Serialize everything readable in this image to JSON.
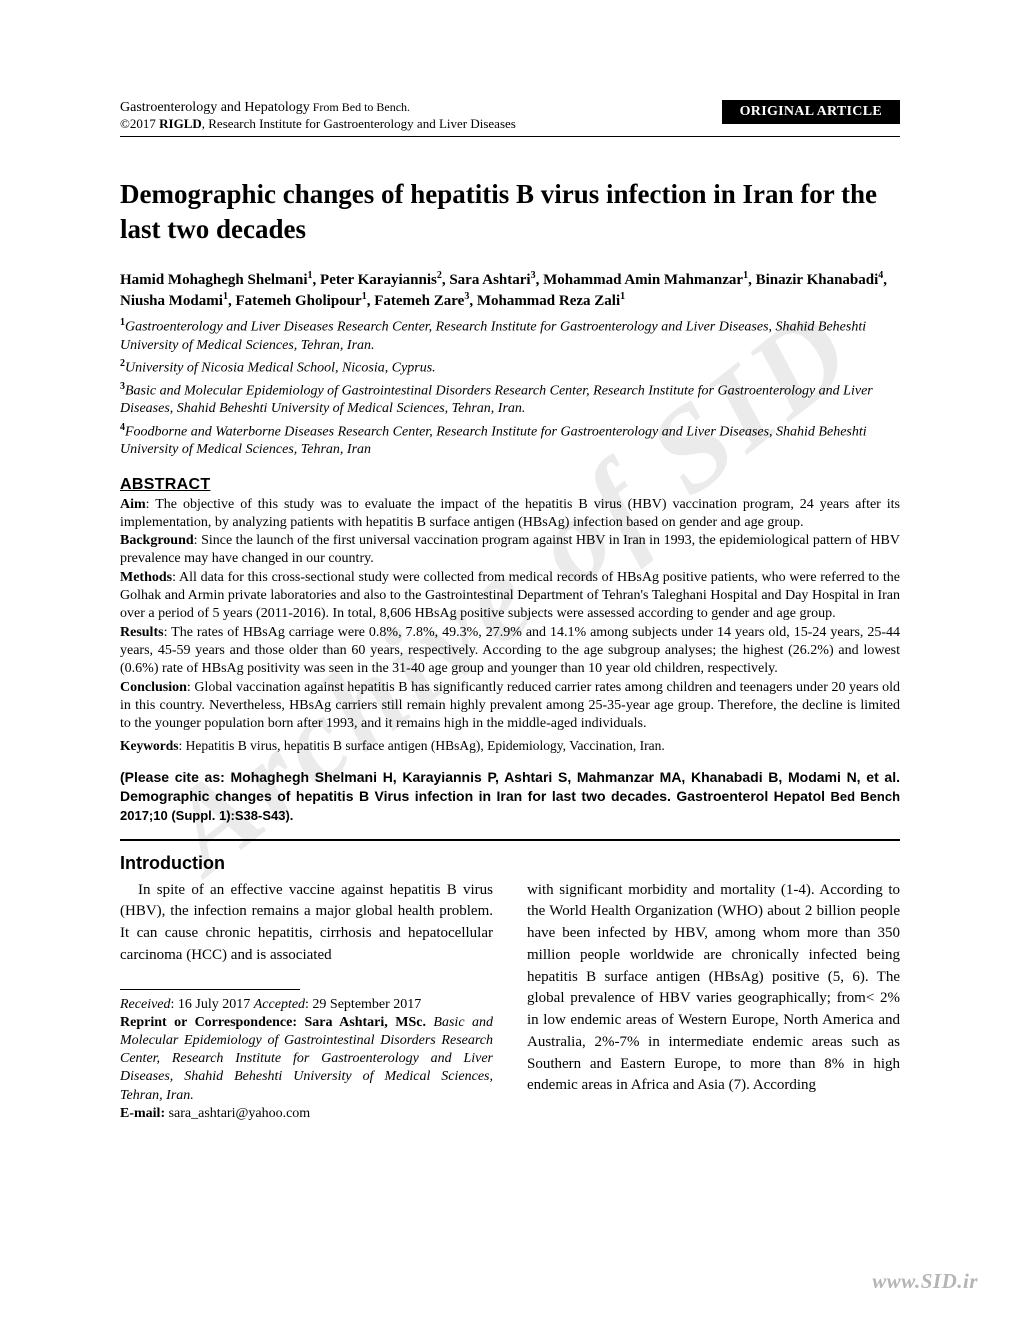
{
  "header": {
    "journal_line1a": "Gastroenterology and Hepatology",
    "journal_line1b": " From Bed to Bench.",
    "journal_line2a": "©2017 ",
    "journal_line2b": "RIGLD",
    "journal_line2c": ", Research Institute for Gastroenterology and Liver Diseases",
    "badge": "ORIGINAL ARTICLE"
  },
  "title": "Demographic changes of hepatitis B virus infection in Iran for the last two decades",
  "authors_html": "Hamid Mohaghegh Shelmani<sup>1</sup>, Peter Karayiannis<sup>2</sup>, Sara Ashtari<sup>3</sup>, Mohammad Amin Mahmanzar<sup>1</sup>, Binazir Khanabadi<sup>4</sup>, Niusha Modami<sup>1</sup>, Fatemeh Gholipour<sup>1</sup>, Fatemeh Zare<sup>3</sup>, Mohammad Reza Zali<sup>1</sup>",
  "affiliations": [
    "1Gastroenterology and Liver Diseases Research Center, Research Institute for Gastroenterology and Liver Diseases, Shahid Beheshti University of Medical Sciences, Tehran, Iran.",
    "2University of Nicosia Medical School, Nicosia, Cyprus.",
    "3Basic and Molecular Epidemiology of Gastrointestinal Disorders Research Center, Research Institute for Gastroenterology and Liver Diseases, Shahid Beheshti University of Medical Sciences, Tehran, Iran.",
    "4Foodborne and Waterborne Diseases Research Center, Research Institute for Gastroenterology and Liver Diseases, Shahid Beheshti University of Medical Sciences, Tehran, Iran"
  ],
  "abstract_heading": "ABSTRACT",
  "abstract": {
    "aim": {
      "label": "Aim",
      "text": ": The objective of this study was to evaluate the impact of the hepatitis B virus (HBV) vaccination program, 24 years after its implementation, by analyzing patients with hepatitis B surface antigen (HBsAg) infection based on gender and age group."
    },
    "background": {
      "label": "Background",
      "text": ": Since the launch of the first universal vaccination program against HBV in Iran in 1993, the epidemiological pattern of HBV prevalence may have changed in our country."
    },
    "methods": {
      "label": "Methods",
      "text": ": All data for this cross-sectional study were collected from medical records of HBsAg positive patients, who were referred to the Golhak and Armin private laboratories and also to the Gastrointestinal Department of Tehran's Taleghani Hospital and Day Hospital in Iran over a period of 5 years (2011-2016). In total, 8,606 HBsAg positive subjects were assessed according to gender and age group."
    },
    "results": {
      "label": "Results",
      "text": ": The rates of HBsAg carriage were 0.8%, 7.8%, 49.3%, 27.9% and 14.1% among subjects under 14 years old, 15-24 years, 25-44 years, 45-59 years and those older than 60 years, respectively. According to the age subgroup analyses; the highest (26.2%) and lowest (0.6%) rate of HBsAg positivity was seen in the 31-40 age group and younger than 10 year old children, respectively."
    },
    "conclusion": {
      "label": "Conclusion",
      "text": ": Global vaccination against hepatitis B has significantly reduced carrier rates among children and teenagers under 20 years old in this country. Nevertheless, HBsAg carriers still remain highly prevalent among 25-35-year age group. Therefore, the decline is limited to the younger population born after 1993, and it remains high in the middle-aged individuals."
    }
  },
  "keywords": {
    "label": "Keywords",
    "text": ": Hepatitis B virus, hepatitis B surface antigen (HBsAg), Epidemiology, Vaccination, Iran."
  },
  "citation": {
    "prefix": "(Please cite as: ",
    "body": "Mohaghegh Shelmani H, Karayiannis P, Ashtari S, Mahmanzar MA, Khanabadi B, Modami N, et al. Demographic changes of hepatitis B Virus infection in Iran for last two decades. Gastroenterol Hepatol ",
    "tail": "Bed Bench 2017;10 (Suppl. 1):S38-S43)."
  },
  "intro_heading": "Introduction",
  "intro_col1": "In spite of an effective vaccine against hepatitis B virus (HBV), the infection remains a major global health problem. It can cause chronic hepatitis, cirrhosis and hepatocellular carcinoma (HCC) and is associated",
  "intro_col2": "with significant morbidity and mortality (1-4). According to the World Health Organization (WHO) about 2 billion people have been infected by HBV, among whom more than 350 million people worldwide are chronically infected being hepatitis B surface antigen (HBsAg) positive (5, 6). The global prevalence of HBV varies geographically; from< 2% in low endemic areas of Western Europe, North America and Australia, 2%-7% in intermediate endemic areas such as Southern and Eastern Europe, to more than 8% in high endemic areas in Africa and Asia (7). According",
  "footnote": {
    "received_label": "Received",
    "received": ": 16 July 2017   ",
    "accepted_label": "Accepted",
    "accepted": ": 29 September 2017",
    "reprint_label": "Reprint or Correspondence",
    "reprint_name": ": Sara Ashtari, MSc.",
    "reprint_affil": " Basic and Molecular Epidemiology of Gastrointestinal Disorders Research Center, Research Institute for Gastroenterology and Liver Diseases, Shahid Beheshti University of Medical Sciences, Tehran, Iran.",
    "email_label": "E-mail:",
    "email": " sara_ashtari@yahoo.com"
  },
  "watermark": "Archive of SID",
  "site": "www.SID.ir"
}
